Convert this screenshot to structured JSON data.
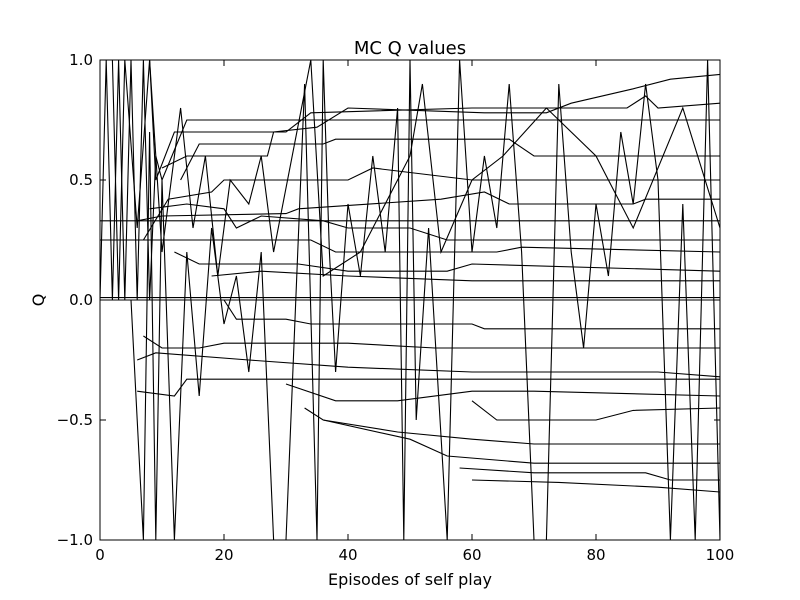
{
  "chart_data": {
    "type": "line",
    "title": "MC Q values",
    "xlabel": "Episodes of self play",
    "ylabel": "Q",
    "xlim": [
      0,
      100
    ],
    "ylim": [
      -1.0,
      1.0
    ],
    "xticks": [
      0,
      20,
      40,
      60,
      80,
      100
    ],
    "xtick_labels": [
      "0",
      "20",
      "40",
      "60",
      "80",
      "100"
    ],
    "yticks": [
      -1.0,
      -0.5,
      0.0,
      0.5,
      1.0
    ],
    "ytick_labels": [
      "−1.0",
      "−0.5",
      "0.0",
      "0.5",
      "1.0"
    ],
    "grid": false,
    "legend": "none",
    "line_color": "#000000",
    "series": [
      {
        "points": [
          [
            0,
            0
          ],
          [
            1,
            1
          ],
          [
            2,
            0
          ],
          [
            3,
            1
          ],
          [
            4,
            0
          ],
          [
            5,
            1
          ],
          [
            6,
            0
          ],
          [
            7,
            1
          ],
          [
            8,
            0
          ],
          [
            9,
            0.6
          ],
          [
            10,
            0.5
          ],
          [
            14,
            0.75
          ],
          [
            40,
            0.75
          ],
          [
            100,
            0.75
          ]
        ]
      },
      {
        "points": [
          [
            8,
            1
          ],
          [
            9,
            0.5
          ],
          [
            12,
            0.7
          ],
          [
            30,
            0.7
          ],
          [
            34,
            0.78
          ],
          [
            60,
            0.8
          ],
          [
            85,
            0.8
          ],
          [
            88,
            0.85
          ],
          [
            90,
            0.8
          ],
          [
            100,
            0.82
          ]
        ]
      },
      {
        "points": [
          [
            10,
            0.55
          ],
          [
            14,
            0.6
          ],
          [
            27,
            0.6
          ],
          [
            28,
            0.7
          ],
          [
            35,
            0.72
          ],
          [
            40,
            0.8
          ],
          [
            62,
            0.78
          ],
          [
            72,
            0.78
          ],
          [
            76,
            0.82
          ],
          [
            86,
            0.88
          ],
          [
            92,
            0.92
          ],
          [
            100,
            0.94
          ]
        ]
      },
      {
        "points": [
          [
            13,
            0.5
          ],
          [
            16,
            0.65
          ],
          [
            36,
            0.65
          ],
          [
            38,
            0.67
          ],
          [
            60,
            0.67
          ],
          [
            66,
            0.67
          ],
          [
            70,
            0.6
          ],
          [
            100,
            0.6
          ]
        ]
      },
      {
        "points": [
          [
            7,
            0.25
          ],
          [
            11,
            0.42
          ],
          [
            18,
            0.45
          ],
          [
            20,
            0.5
          ],
          [
            40,
            0.5
          ],
          [
            44,
            0.55
          ],
          [
            60,
            0.5
          ],
          [
            100,
            0.5
          ]
        ]
      },
      {
        "points": [
          [
            6,
            0.33
          ],
          [
            10,
            0.35
          ],
          [
            30,
            0.36
          ],
          [
            32,
            0.38
          ],
          [
            55,
            0.42
          ],
          [
            62,
            0.45
          ],
          [
            66,
            0.4
          ],
          [
            86,
            0.4
          ],
          [
            88,
            0.42
          ],
          [
            100,
            0.42
          ]
        ]
      },
      {
        "points": [
          [
            0,
            0.33
          ],
          [
            100,
            0.33
          ]
        ]
      },
      {
        "points": [
          [
            8,
            0.38
          ],
          [
            14,
            0.4
          ],
          [
            20,
            0.38
          ],
          [
            22,
            0.3
          ],
          [
            26,
            0.35
          ],
          [
            36,
            0.33
          ],
          [
            40,
            0.3
          ],
          [
            50,
            0.3
          ],
          [
            56,
            0.25
          ],
          [
            60,
            0.25
          ],
          [
            100,
            0.25
          ]
        ]
      },
      {
        "points": [
          [
            0,
            0.25
          ],
          [
            34,
            0.25
          ],
          [
            38,
            0.2
          ],
          [
            64,
            0.2
          ],
          [
            68,
            0.22
          ],
          [
            100,
            0.2
          ]
        ]
      },
      {
        "points": [
          [
            12,
            0.2
          ],
          [
            16,
            0.15
          ],
          [
            32,
            0.15
          ],
          [
            40,
            0.12
          ],
          [
            56,
            0.12
          ],
          [
            60,
            0.15
          ],
          [
            100,
            0.12
          ]
        ]
      },
      {
        "points": [
          [
            18,
            0.1
          ],
          [
            26,
            0.12
          ],
          [
            40,
            0.1
          ],
          [
            60,
            0.08
          ],
          [
            100,
            0.08
          ]
        ]
      },
      {
        "points": [
          [
            0,
            0
          ],
          [
            100,
            0
          ]
        ]
      },
      {
        "points": [
          [
            0,
            0.01
          ],
          [
            30,
            0.01
          ],
          [
            60,
            0.01
          ],
          [
            100,
            0.01
          ]
        ]
      },
      {
        "points": [
          [
            20,
            0
          ],
          [
            22,
            -0.08
          ],
          [
            30,
            -0.08
          ],
          [
            34,
            -0.1
          ],
          [
            60,
            -0.1
          ],
          [
            62,
            -0.12
          ],
          [
            88,
            -0.12
          ],
          [
            100,
            -0.12
          ]
        ]
      },
      {
        "points": [
          [
            7,
            -0.15
          ],
          [
            10,
            -0.2
          ],
          [
            16,
            -0.2
          ],
          [
            20,
            -0.18
          ],
          [
            40,
            -0.18
          ],
          [
            54,
            -0.2
          ],
          [
            100,
            -0.2
          ]
        ]
      },
      {
        "points": [
          [
            6,
            -0.25
          ],
          [
            9,
            -0.22
          ],
          [
            24,
            -0.25
          ],
          [
            40,
            -0.28
          ],
          [
            60,
            -0.3
          ],
          [
            72,
            -0.3
          ],
          [
            90,
            -0.3
          ],
          [
            100,
            -0.32
          ]
        ]
      },
      {
        "points": [
          [
            6,
            -0.38
          ],
          [
            12,
            -0.4
          ],
          [
            14,
            -0.33
          ],
          [
            40,
            -0.33
          ],
          [
            72,
            -0.33
          ],
          [
            100,
            -0.33
          ]
        ]
      },
      {
        "points": [
          [
            30,
            -0.35
          ],
          [
            38,
            -0.42
          ],
          [
            48,
            -0.42
          ],
          [
            60,
            -0.38
          ],
          [
            70,
            -0.38
          ],
          [
            100,
            -0.4
          ]
        ]
      },
      {
        "points": [
          [
            60,
            -0.42
          ],
          [
            64,
            -0.5
          ],
          [
            80,
            -0.5
          ],
          [
            86,
            -0.46
          ],
          [
            100,
            -0.45
          ]
        ]
      },
      {
        "points": [
          [
            33,
            -0.45
          ],
          [
            36,
            -0.5
          ],
          [
            48,
            -0.55
          ],
          [
            60,
            -0.58
          ],
          [
            70,
            -0.6
          ],
          [
            100,
            -0.6
          ]
        ]
      },
      {
        "points": [
          [
            36,
            -0.5
          ],
          [
            50,
            -0.58
          ],
          [
            56,
            -0.65
          ],
          [
            70,
            -0.68
          ],
          [
            100,
            -0.68
          ]
        ]
      },
      {
        "points": [
          [
            58,
            -0.7
          ],
          [
            70,
            -0.72
          ],
          [
            88,
            -0.72
          ],
          [
            92,
            -0.75
          ],
          [
            100,
            -0.75
          ]
        ]
      },
      {
        "points": [
          [
            60,
            -0.75
          ],
          [
            74,
            -0.76
          ],
          [
            90,
            -0.78
          ],
          [
            100,
            -0.8
          ]
        ]
      },
      {
        "points": [
          [
            5,
            0
          ],
          [
            6,
            -0.5
          ],
          [
            7,
            -1
          ],
          [
            8,
            0.7
          ],
          [
            9,
            -1
          ],
          [
            10,
            0.5
          ],
          [
            12,
            -1
          ],
          [
            14,
            0.2
          ],
          [
            16,
            -0.4
          ],
          [
            18,
            0.3
          ],
          [
            20,
            -0.1
          ],
          [
            22,
            0.1
          ],
          [
            24,
            -0.3
          ],
          [
            26,
            0.2
          ],
          [
            28,
            -1
          ]
        ]
      },
      {
        "points": [
          [
            30,
            -1
          ],
          [
            33,
            0.9
          ],
          [
            35,
            -1
          ],
          [
            36,
            1
          ],
          [
            37,
            0.2
          ],
          [
            38,
            -0.3
          ],
          [
            40,
            0.4
          ],
          [
            42,
            0.1
          ],
          [
            44,
            0.6
          ],
          [
            46,
            0.2
          ],
          [
            48,
            0.8
          ],
          [
            49,
            -1
          ],
          [
            50,
            1
          ],
          [
            51,
            -0.5
          ],
          [
            53,
            0.3
          ],
          [
            56,
            -1
          ],
          [
            58,
            1
          ],
          [
            60,
            0.2
          ],
          [
            62,
            0.6
          ],
          [
            64,
            0.3
          ],
          [
            66,
            0.9
          ],
          [
            68,
            0.2
          ],
          [
            70,
            -1
          ]
        ]
      },
      {
        "points": [
          [
            72,
            -1
          ],
          [
            74,
            0.9
          ],
          [
            76,
            0.2
          ],
          [
            78,
            -0.2
          ],
          [
            80,
            0.4
          ],
          [
            82,
            0.1
          ],
          [
            84,
            0.7
          ],
          [
            86,
            0.4
          ],
          [
            88,
            0.9
          ],
          [
            90,
            0.5
          ],
          [
            92,
            -1
          ],
          [
            94,
            0.4
          ],
          [
            96,
            -1
          ],
          [
            98,
            1
          ],
          [
            100,
            -1
          ]
        ]
      },
      {
        "points": [
          [
            2,
            1
          ],
          [
            3,
            0
          ],
          [
            4,
            1
          ],
          [
            6,
            0.3
          ],
          [
            8,
            1
          ],
          [
            10,
            0.2
          ],
          [
            13,
            0.8
          ],
          [
            15,
            0.3
          ],
          [
            17,
            0.6
          ],
          [
            19,
            0.1
          ],
          [
            21,
            0.5
          ],
          [
            24,
            0.4
          ],
          [
            26,
            0.6
          ],
          [
            28,
            0.2
          ],
          [
            34,
            1
          ],
          [
            36,
            0.1
          ],
          [
            42,
            0.2
          ],
          [
            50,
            0.6
          ],
          [
            52,
            0.9
          ],
          [
            55,
            0.2
          ],
          [
            60,
            0.5
          ],
          [
            65,
            0.6
          ],
          [
            72,
            0.8
          ],
          [
            80,
            0.6
          ],
          [
            86,
            0.3
          ],
          [
            94,
            0.8
          ],
          [
            100,
            0.3
          ]
        ]
      }
    ]
  }
}
